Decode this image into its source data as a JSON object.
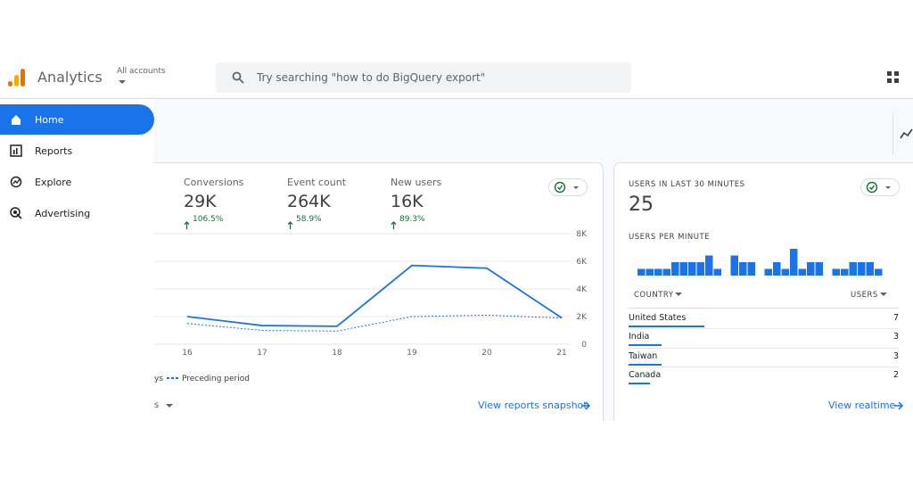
{
  "header": {
    "product": "Analytics",
    "account_label": "All accounts",
    "search_placeholder": "Try searching \"how to do BigQuery export\""
  },
  "nav": [
    {
      "label": "Home",
      "selected": true
    },
    {
      "label": "Reports",
      "selected": false
    },
    {
      "label": "Explore",
      "selected": false
    },
    {
      "label": "Advertising",
      "selected": false
    }
  ],
  "overview": {
    "metrics": [
      {
        "label": "Conversions",
        "value": "29K",
        "change": "106.5%"
      },
      {
        "label": "Event count",
        "value": "264K",
        "change": "58.9%"
      },
      {
        "label": "New users",
        "value": "16K",
        "change": "89.3%"
      }
    ],
    "chart_data": {
      "type": "line",
      "categories": [
        "16",
        "17",
        "18",
        "19",
        "20",
        "21"
      ],
      "series": [
        {
          "name": "ys",
          "color": "#1a73e8",
          "style": "solid",
          "values": [
            2000,
            1350,
            1300,
            5700,
            5500,
            1900
          ]
        },
        {
          "name": "Preceding period",
          "color": "#1a73e8",
          "style": "dashed",
          "values": [
            1500,
            1000,
            950,
            2000,
            2100,
            1900
          ]
        }
      ],
      "ylim": [
        0,
        8000
      ],
      "yticks": [
        {
          "value": 8000,
          "label": "8K"
        },
        {
          "value": 6000,
          "label": "6K"
        },
        {
          "value": 4000,
          "label": "4K"
        },
        {
          "value": 2000,
          "label": "2K"
        },
        0
      ],
      "grid": true
    },
    "footer_partial": "s",
    "link": "View reports snapshot"
  },
  "realtime": {
    "title": "USERS IN LAST 30 MINUTES",
    "count": "25",
    "per_minute_label": "USERS PER MINUTE",
    "chart_data": {
      "type": "bar",
      "color": "#1a73e8",
      "values": [
        1,
        1,
        1,
        1,
        2,
        2,
        2,
        2,
        3,
        1,
        0,
        3,
        2,
        2,
        0,
        1,
        2,
        1,
        4,
        1,
        2,
        2,
        0,
        1,
        1,
        2,
        2,
        2,
        1,
        0
      ],
      "ylim": [
        0,
        4
      ]
    },
    "table": {
      "columns": [
        "COUNTRY",
        "USERS"
      ],
      "rows": [
        {
          "country": "United States",
          "users": 7
        },
        {
          "country": "India",
          "users": 3
        },
        {
          "country": "Taiwan",
          "users": 3
        },
        {
          "country": "Canada",
          "users": 2
        }
      ]
    },
    "link": "View realtime"
  }
}
